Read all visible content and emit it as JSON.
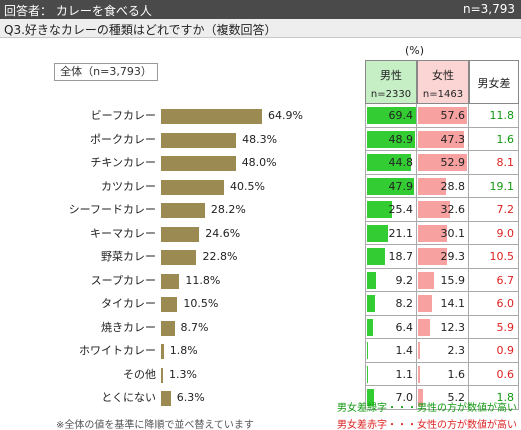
{
  "header": {
    "respondent": "回答者： カレーを食べる人",
    "total_n": "n=3,793",
    "question": "Q3.好きなカレーの種類はどれですか（複数回答）"
  },
  "colors": {
    "bar": "#9b8b52",
    "male_fill": "#33cc33",
    "female_fill": "#f7a1a1",
    "diff_green": "#119911",
    "diff_red": "#dd2222"
  },
  "chart_data": {
    "type": "bar",
    "overall_label": "全体（n=3,793）",
    "unit_label": "(%)",
    "categories": [
      "ビーフカレー",
      "ポークカレー",
      "チキンカレー",
      "カツカレー",
      "シーフードカレー",
      "キーマカレー",
      "野菜カレー",
      "スープカレー",
      "タイカレー",
      "焼きカレー",
      "ホワイトカレー",
      "その他",
      "とくにない"
    ],
    "overall": [
      64.9,
      48.3,
      48.0,
      40.5,
      28.2,
      24.6,
      22.8,
      11.8,
      10.5,
      8.7,
      1.8,
      1.3,
      6.3
    ],
    "overall_labels": [
      "64.9%",
      "48.3%",
      "48.0%",
      "40.5%",
      "28.2%",
      "24.6%",
      "22.8%",
      "11.8%",
      "10.5%",
      "8.7%",
      "1.8%",
      "1.3%",
      "6.3%"
    ],
    "male": {
      "title": "男性",
      "n": "n=2330",
      "values": [
        69.4,
        48.9,
        44.8,
        47.9,
        25.4,
        21.1,
        18.7,
        9.2,
        8.2,
        6.4,
        1.4,
        1.1,
        7.0
      ],
      "labels": [
        "69.4",
        "48.9",
        "44.8",
        "47.9",
        "25.4",
        "21.1",
        "18.7",
        "9.2",
        "8.2",
        "6.4",
        "1.4",
        "1.1",
        "7.0"
      ]
    },
    "female": {
      "title": "女性",
      "n": "n=1463",
      "values": [
        57.6,
        47.3,
        52.9,
        28.8,
        32.6,
        30.1,
        29.3,
        15.9,
        14.1,
        12.3,
        2.3,
        1.6,
        5.2
      ],
      "labels": [
        "57.6",
        "47.3",
        "52.9",
        "28.8",
        "32.6",
        "30.1",
        "29.3",
        "15.9",
        "14.1",
        "12.3",
        "2.3",
        "1.6",
        "5.2"
      ]
    },
    "difference": {
      "title": "男女差",
      "labels": [
        "11.8",
        "1.6",
        "8.1",
        "19.1",
        "7.2",
        "9.0",
        "10.5",
        "6.7",
        "6.0",
        "5.9",
        "0.9",
        "0.6",
        "1.8"
      ],
      "higher": [
        "male",
        "male",
        "female",
        "male",
        "female",
        "female",
        "female",
        "female",
        "female",
        "female",
        "female",
        "female",
        "male"
      ]
    }
  },
  "footer": {
    "note": "※全体の値を基準に降順で並べ替えています",
    "legend_green": "男女差緑字・・・男性の方が数値が高い",
    "legend_red": "男女差赤字・・・女性の方が数値が高い"
  }
}
